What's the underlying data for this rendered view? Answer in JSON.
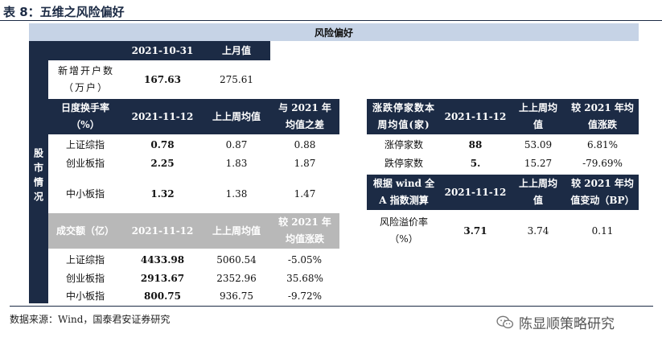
{
  "title": "表 8：五维之风险偏好",
  "band": "风险偏好",
  "side_label": "股市情况",
  "account": {
    "hdr_date": "2021-10-31",
    "hdr_prev": "上月值",
    "row_label": "新增开户数（万户）",
    "value": "167.63",
    "prev": "275.61"
  },
  "turnover": {
    "hdr_label": "日度换手率（%）",
    "hdr_date": "2021-11-12",
    "hdr_avg": "上上周均值",
    "hdr_diff": "与 2021 年均值之差",
    "rows": [
      {
        "name": "上证综指",
        "value": "0.78",
        "avg": "0.87",
        "diff": "0.88"
      },
      {
        "name": "创业板指",
        "value": "2.25",
        "avg": "1.83",
        "diff": "1.87"
      },
      {
        "name": "中小板指",
        "value": "1.32",
        "avg": "1.38",
        "diff": "1.47"
      }
    ]
  },
  "volume": {
    "hdr_label": "成交额（亿）",
    "hdr_date": "2021-11-12",
    "hdr_avg": "上上周均值",
    "hdr_diff": "较 2021 年均值涨跌",
    "rows": [
      {
        "name": "上证综指",
        "value": "4433.98",
        "avg": "5060.54",
        "diff": "-5.05%"
      },
      {
        "name": "创业板指",
        "value": "2913.67",
        "avg": "2352.96",
        "diff": "35.68%"
      },
      {
        "name": "中小板指",
        "value": "800.75",
        "avg": "936.75",
        "diff": "-9.72%"
      }
    ]
  },
  "limits": {
    "hdr_label": "涨跌停家数本周均值(家)",
    "hdr_date": "2021-11-12",
    "hdr_avg": "上上周均值",
    "hdr_diff": "较 2021 年均值涨跌",
    "rows": [
      {
        "name": "涨停家数",
        "value": "88",
        "avg": "53.09",
        "diff": "6.81%"
      },
      {
        "name": "跌停家数",
        "value": "5.",
        "avg": "15.27",
        "diff": "-79.69%"
      }
    ]
  },
  "premium": {
    "hdr_label": "根据 wind 全 A 指数测算",
    "hdr_date": "2021-11-12",
    "hdr_avg": "上上周均值",
    "hdr_diff": "较 2021 年均值变动（BP）",
    "row_label": "风险溢价率（%）",
    "value": "3.71",
    "avg": "3.74",
    "diff": "0.11"
  },
  "footer": "数据来源：Wind，国泰君安证券研究",
  "watermark": "陈显顺策略研究"
}
